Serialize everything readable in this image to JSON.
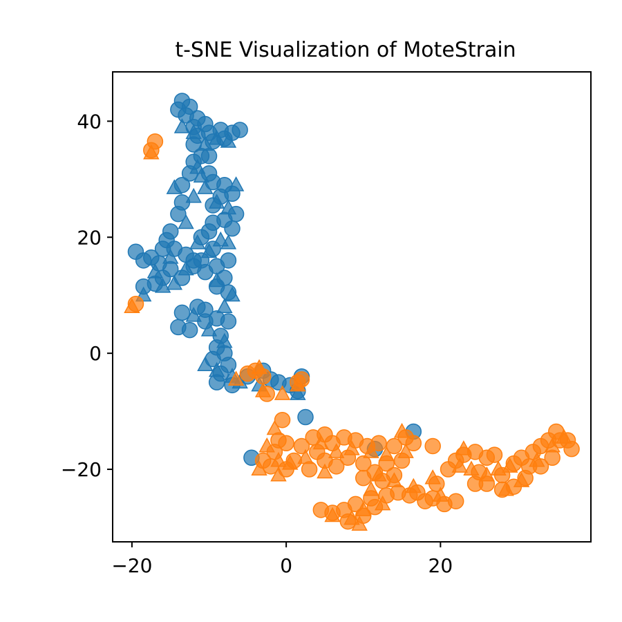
{
  "chart_data": {
    "type": "scatter",
    "title": "t-SNE Visualization of MoteStrain",
    "xlabel": "",
    "ylabel": "",
    "xlim": [
      -22.5,
      39.5
    ],
    "ylim": [
      -32.5,
      48.5
    ],
    "xticks": [
      -20,
      0,
      20
    ],
    "xtick_labels": [
      "−20",
      "0",
      "20"
    ],
    "yticks": [
      -20,
      0,
      20,
      40
    ],
    "ytick_labels": [
      "−20",
      "0",
      "20",
      "40"
    ],
    "grid": false,
    "legend": "none",
    "markers": [
      "circle",
      "triangle"
    ],
    "series": [
      {
        "color": "#1f77b4",
        "circles": [
          [
            -13.5,
            43.5
          ],
          [
            -12.5,
            42.5
          ],
          [
            -14,
            42
          ],
          [
            -13,
            41
          ],
          [
            -11.5,
            40.5
          ],
          [
            -12,
            39
          ],
          [
            -10.5,
            39.5
          ],
          [
            -11.5,
            37.5
          ],
          [
            -10,
            38
          ],
          [
            -12,
            36
          ],
          [
            -8.5,
            38.5
          ],
          [
            -7,
            38
          ],
          [
            -6,
            38.5
          ],
          [
            -8,
            37
          ],
          [
            -9.5,
            36.5
          ],
          [
            -11,
            34
          ],
          [
            -12,
            33
          ],
          [
            -12.5,
            31
          ],
          [
            -13.5,
            29
          ],
          [
            -10,
            31
          ],
          [
            -9.5,
            29.5
          ],
          [
            -8,
            29
          ],
          [
            -8.5,
            27
          ],
          [
            -9.5,
            25.5
          ],
          [
            -7,
            27.5
          ],
          [
            -6.5,
            24
          ],
          [
            -8,
            23
          ],
          [
            -9.5,
            22.5
          ],
          [
            -7,
            21.5
          ],
          [
            -10,
            21
          ],
          [
            -11,
            20
          ],
          [
            -13.5,
            26
          ],
          [
            -14,
            24
          ],
          [
            -15,
            21
          ],
          [
            -15.5,
            19.5
          ],
          [
            -14.5,
            18
          ],
          [
            -13,
            17
          ],
          [
            -12,
            15
          ],
          [
            -15,
            14.5
          ],
          [
            -16.5,
            15.5
          ],
          [
            -17.5,
            16.5
          ],
          [
            -19.5,
            17.5
          ],
          [
            -18.5,
            16
          ],
          [
            -16,
            13
          ],
          [
            -17,
            12
          ],
          [
            -18.5,
            11.5
          ],
          [
            -13.5,
            13
          ],
          [
            -11,
            16
          ],
          [
            -9.5,
            18
          ],
          [
            -9,
            15
          ],
          [
            -7.5,
            16
          ],
          [
            -8,
            13
          ],
          [
            -9,
            11.5
          ],
          [
            -7.5,
            10.5
          ],
          [
            -11.5,
            8
          ],
          [
            -10.5,
            7.5
          ],
          [
            -13.5,
            7
          ],
          [
            -14,
            4.5
          ],
          [
            -12.5,
            4
          ],
          [
            -10.5,
            5.5
          ],
          [
            -9,
            6
          ],
          [
            -7.5,
            5.5
          ],
          [
            -8.5,
            3
          ],
          [
            -9,
            1
          ],
          [
            -8,
            0
          ],
          [
            -9.5,
            -1
          ],
          [
            -7.5,
            -2
          ],
          [
            -8.5,
            -3.5
          ],
          [
            -9,
            -5
          ],
          [
            -7,
            -5.5
          ],
          [
            -5,
            -4
          ],
          [
            -3,
            -3
          ],
          [
            -2,
            -4.5
          ],
          [
            -1,
            -5
          ],
          [
            0.5,
            -5.5
          ],
          [
            1.5,
            -6.5
          ],
          [
            2,
            -4
          ],
          [
            2.5,
            -11
          ],
          [
            -4.5,
            -18
          ],
          [
            16.5,
            -13.5
          ],
          [
            11.5,
            -16.5
          ],
          [
            -10.5,
            14
          ],
          [
            -12,
            16
          ],
          [
            -16,
            18
          ],
          [
            -10,
            34
          ]
        ],
        "triangles": [
          [
            -12,
            38
          ],
          [
            -10.5,
            36
          ],
          [
            -9,
            37
          ],
          [
            -7.5,
            36.5
          ],
          [
            -11.5,
            32
          ],
          [
            -10.5,
            28.5
          ],
          [
            -12,
            27
          ],
          [
            -9,
            26
          ],
          [
            -7.5,
            25
          ],
          [
            -14.5,
            28.5
          ],
          [
            -13,
            22.5
          ],
          [
            -15,
            16.5
          ],
          [
            -13,
            14.5
          ],
          [
            -14.5,
            12
          ],
          [
            -17,
            14
          ],
          [
            -18.5,
            10
          ],
          [
            -10,
            17.5
          ],
          [
            -8.5,
            19.5
          ],
          [
            -7.5,
            19
          ],
          [
            -11.5,
            19
          ],
          [
            -9,
            12.5
          ],
          [
            -7,
            10
          ],
          [
            -12,
            6.5
          ],
          [
            -10,
            4
          ],
          [
            -8,
            2
          ],
          [
            -10.5,
            -2
          ],
          [
            -9,
            -3
          ],
          [
            -7,
            -4
          ],
          [
            -6,
            -5
          ],
          [
            -3.5,
            -5.5
          ],
          [
            1.5,
            -7
          ],
          [
            -8,
            8
          ],
          [
            -6.5,
            29
          ],
          [
            -13.5,
            39
          ],
          [
            -11,
            30.5
          ],
          [
            -16,
            11.5
          ]
        ]
      },
      {
        "color": "#ff7f0e",
        "circles": [
          [
            -17,
            36.5
          ],
          [
            -17.5,
            35
          ],
          [
            -19.5,
            8.5
          ],
          [
            -5,
            -3.5
          ],
          [
            -4,
            -3
          ],
          [
            -3,
            -4
          ],
          [
            -2.5,
            -7
          ],
          [
            2,
            -4.5
          ],
          [
            1.5,
            -5
          ],
          [
            -0.5,
            -11.5
          ],
          [
            -1,
            -15
          ],
          [
            0,
            -15.5
          ],
          [
            -1.5,
            -17
          ],
          [
            -3,
            -18.5
          ],
          [
            -2,
            -19.5
          ],
          [
            0,
            -20
          ],
          [
            1,
            -18.5
          ],
          [
            2,
            -16
          ],
          [
            3.5,
            -14.5
          ],
          [
            5,
            -14
          ],
          [
            6,
            -15.5
          ],
          [
            7.5,
            -14.5
          ],
          [
            9,
            -15
          ],
          [
            10.5,
            -16
          ],
          [
            12,
            -15.5
          ],
          [
            14,
            -16
          ],
          [
            15.5,
            -14.5
          ],
          [
            16.5,
            -15.5
          ],
          [
            13,
            -19
          ],
          [
            11.5,
            -20.5
          ],
          [
            10,
            -21.5
          ],
          [
            12.5,
            -22
          ],
          [
            14,
            -21
          ],
          [
            13,
            -24.5
          ],
          [
            11,
            -25
          ],
          [
            9,
            -26
          ],
          [
            7.5,
            -27
          ],
          [
            6,
            -27.5
          ],
          [
            4.5,
            -27
          ],
          [
            8,
            -29
          ],
          [
            10,
            -28
          ],
          [
            11.5,
            -26.5
          ],
          [
            14.5,
            -24
          ],
          [
            17,
            -24
          ],
          [
            19,
            -25
          ],
          [
            20.5,
            -26
          ],
          [
            22,
            -25.5
          ],
          [
            19.5,
            -22.5
          ],
          [
            21,
            -20
          ],
          [
            22,
            -18.5
          ],
          [
            23,
            -17.5
          ],
          [
            24.5,
            -17
          ],
          [
            26,
            -18
          ],
          [
            27,
            -17.5
          ],
          [
            25,
            -20.5
          ],
          [
            24.5,
            -22.5
          ],
          [
            26,
            -22.5
          ],
          [
            28,
            -21
          ],
          [
            29.5,
            -19
          ],
          [
            30.5,
            -18
          ],
          [
            31.5,
            -19.5
          ],
          [
            32,
            -17
          ],
          [
            33,
            -16
          ],
          [
            34,
            -15
          ],
          [
            35,
            -13.5
          ],
          [
            35.5,
            -15
          ],
          [
            36.5,
            -15
          ],
          [
            37,
            -16.5
          ],
          [
            34.5,
            -18
          ],
          [
            33,
            -19.5
          ],
          [
            31,
            -21.5
          ],
          [
            29.5,
            -23
          ],
          [
            28,
            -23.5
          ],
          [
            19,
            -16
          ],
          [
            18,
            -25.5
          ],
          [
            16,
            -24.5
          ],
          [
            5,
            -18.5
          ],
          [
            6.5,
            -19.5
          ],
          [
            3,
            -20
          ],
          [
            4,
            -17
          ],
          [
            8,
            -18
          ],
          [
            10,
            -19
          ],
          [
            15,
            -18.5
          ]
        ],
        "triangles": [
          [
            -17.5,
            34.5
          ],
          [
            -20,
            8
          ],
          [
            -6.5,
            -4.5
          ],
          [
            -3.5,
            -2.5
          ],
          [
            -3,
            -6.5
          ],
          [
            1.5,
            -5.5
          ],
          [
            -1.5,
            -13
          ],
          [
            -2.5,
            -16
          ],
          [
            -1,
            -18.5
          ],
          [
            -3.5,
            -20
          ],
          [
            -1,
            -21
          ],
          [
            0.5,
            -19
          ],
          [
            2.5,
            -18
          ],
          [
            4.5,
            -15.5
          ],
          [
            6.5,
            -17
          ],
          [
            8.5,
            -16.5
          ],
          [
            11,
            -17
          ],
          [
            13,
            -17.5
          ],
          [
            15,
            -13.5
          ],
          [
            15.5,
            -17
          ],
          [
            12,
            -21
          ],
          [
            11,
            -23.5
          ],
          [
            12.5,
            -26
          ],
          [
            8.5,
            -28.5
          ],
          [
            6,
            -28
          ],
          [
            9.5,
            -29.5
          ],
          [
            14,
            -22
          ],
          [
            16.5,
            -23
          ],
          [
            19,
            -21.5
          ],
          [
            20,
            -24.5
          ],
          [
            22.5,
            -19.5
          ],
          [
            24,
            -20
          ],
          [
            26,
            -21
          ],
          [
            27.5,
            -20
          ],
          [
            29,
            -19.5
          ],
          [
            28.5,
            -23.5
          ],
          [
            30.5,
            -22
          ],
          [
            32.5,
            -18.5
          ],
          [
            34.5,
            -16
          ],
          [
            36,
            -14.5
          ],
          [
            23,
            -16.5
          ],
          [
            5,
            -20.5
          ],
          [
            -0.5,
            -7
          ],
          [
            10,
            -27
          ]
        ]
      }
    ]
  }
}
